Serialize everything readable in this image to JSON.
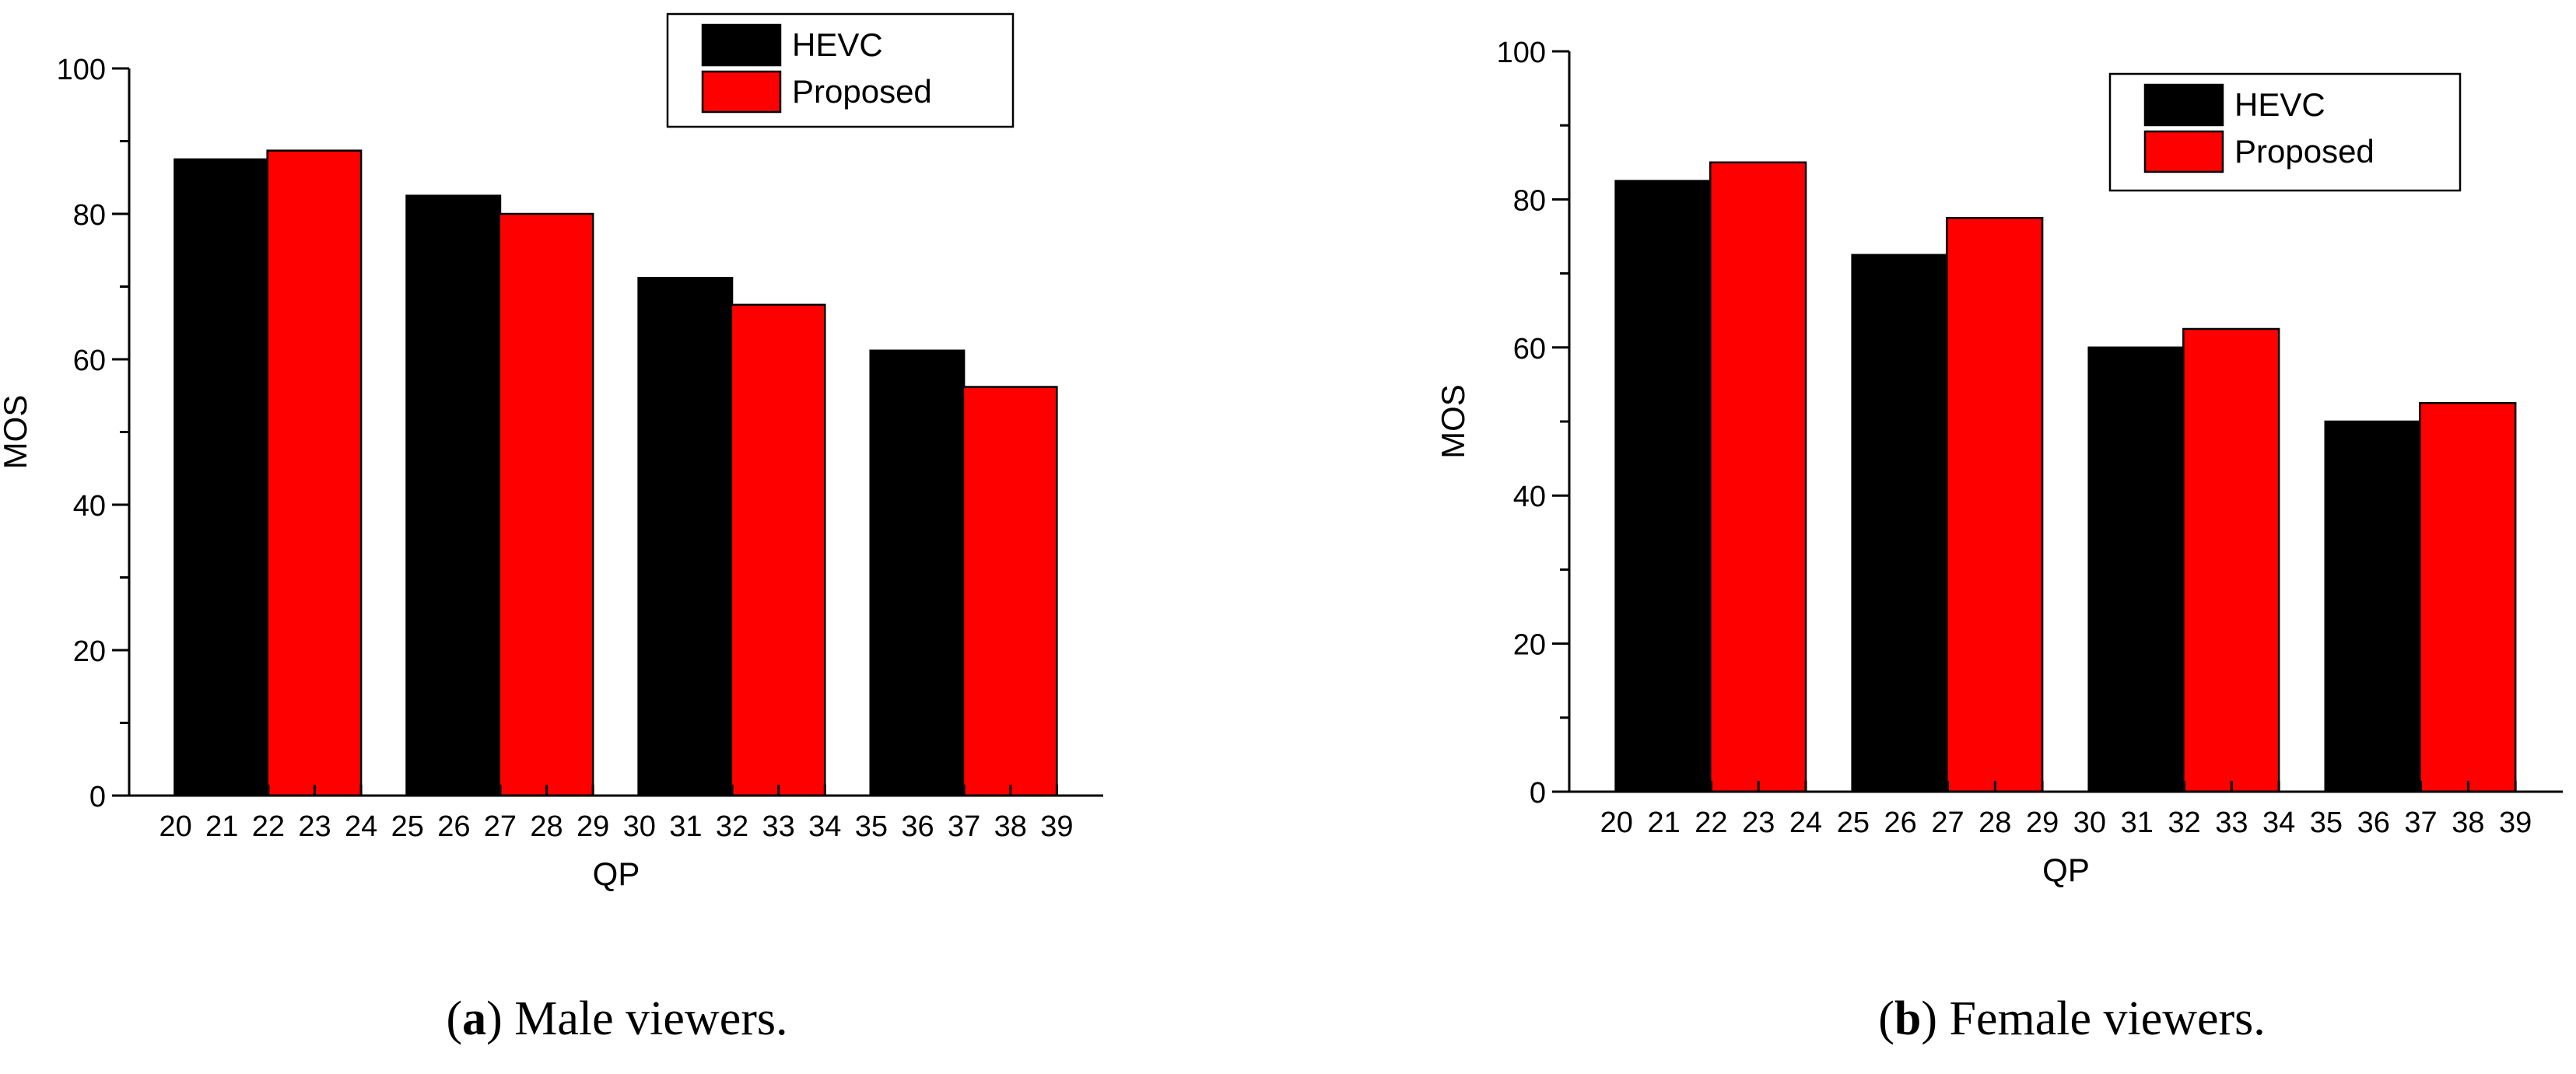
{
  "chart_data": [
    {
      "type": "bar",
      "panel": "a",
      "caption": {
        "label": "a",
        "text": ") Male viewers."
      },
      "xlabel": "QP",
      "ylabel": "MOS",
      "ylim": [
        0,
        100
      ],
      "yticks": [
        "0",
        "20",
        "40",
        "60",
        "80",
        "100"
      ],
      "xticks": [
        "20",
        "21",
        "22",
        "23",
        "24",
        "25",
        "26",
        "27",
        "28",
        "29",
        "30",
        "31",
        "32",
        "33",
        "34",
        "35",
        "36",
        "37",
        "38",
        "39"
      ],
      "groups": [
        "20–24",
        "25–29",
        "30–34",
        "35–39"
      ],
      "series": [
        {
          "name": "HEVC",
          "color": "#000000",
          "values": [
            87.5,
            82.5,
            71.2,
            61.2
          ]
        },
        {
          "name": "Proposed",
          "color": "#ff0000",
          "values": [
            88.7,
            80.0,
            67.5,
            56.2
          ]
        }
      ],
      "legend": [
        "HEVC",
        "Proposed"
      ],
      "legend_position": "top-right"
    },
    {
      "type": "bar",
      "panel": "b",
      "caption": {
        "label": "b",
        "text": ") Female viewers."
      },
      "xlabel": "QP",
      "ylabel": "MOS",
      "ylim": [
        0,
        100
      ],
      "yticks": [
        "0",
        "20",
        "40",
        "60",
        "80",
        "100"
      ],
      "xticks": [
        "20",
        "21",
        "22",
        "23",
        "24",
        "25",
        "26",
        "27",
        "28",
        "29",
        "30",
        "31",
        "32",
        "33",
        "34",
        "35",
        "36",
        "37",
        "38",
        "39"
      ],
      "groups": [
        "20–24",
        "25–29",
        "30–34",
        "35–39"
      ],
      "series": [
        {
          "name": "HEVC",
          "color": "#000000",
          "values": [
            82.5,
            72.5,
            60.0,
            50.0
          ]
        },
        {
          "name": "Proposed",
          "color": "#ff0000",
          "values": [
            85.0,
            77.5,
            62.5,
            52.5
          ]
        }
      ],
      "legend": [
        "HEVC",
        "Proposed"
      ],
      "legend_position": "top-right"
    }
  ]
}
